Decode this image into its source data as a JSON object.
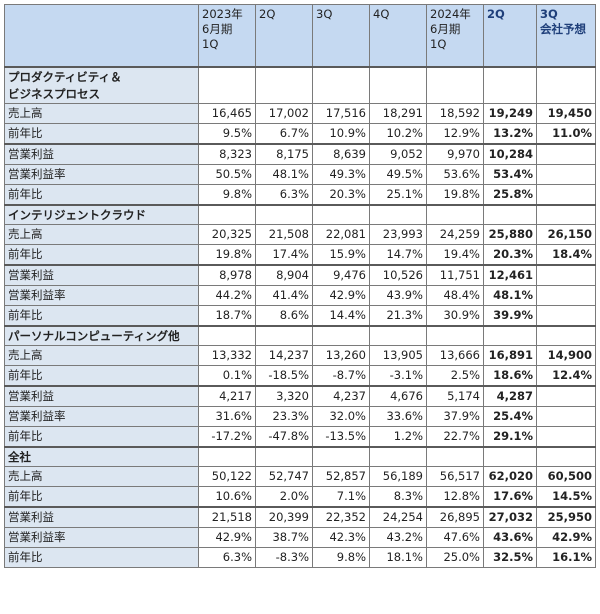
{
  "headers": [
    [
      "",
      "",
      ""
    ],
    [
      "2023年",
      "6月期",
      "1Q"
    ],
    [
      "2Q",
      "",
      ""
    ],
    [
      "3Q",
      "",
      ""
    ],
    [
      "4Q",
      "",
      ""
    ],
    [
      "2024年",
      "6月期",
      "1Q"
    ],
    [
      "2Q",
      "",
      ""
    ],
    [
      "3Q",
      "会社予想",
      ""
    ]
  ],
  "sections": [
    {
      "title": [
        "プロダクティビティ＆",
        "ビジネスプロセス"
      ],
      "rows": [
        {
          "label": "売上高",
          "values": [
            "16,465",
            "17,002",
            "17,516",
            "18,291",
            "18,592",
            "19,249",
            "19,450"
          ]
        },
        {
          "label": "前年比",
          "values": [
            "9.5%",
            "6.7%",
            "10.9%",
            "10.2%",
            "12.9%",
            "13.2%",
            "11.0%"
          ]
        },
        {
          "label": "営業利益",
          "values": [
            "8,323",
            "8,175",
            "8,639",
            "9,052",
            "9,970",
            "10,284",
            ""
          ]
        },
        {
          "label": "営業利益率",
          "values": [
            "50.5%",
            "48.1%",
            "49.3%",
            "49.5%",
            "53.6%",
            "53.4%",
            ""
          ]
        },
        {
          "label": "前年比",
          "values": [
            "9.8%",
            "6.3%",
            "20.3%",
            "25.1%",
            "19.8%",
            "25.8%",
            ""
          ]
        }
      ]
    },
    {
      "title": [
        "インテリジェントクラウド"
      ],
      "rows": [
        {
          "label": "売上高",
          "values": [
            "20,325",
            "21,508",
            "22,081",
            "23,993",
            "24,259",
            "25,880",
            "26,150"
          ]
        },
        {
          "label": "前年比",
          "values": [
            "19.8%",
            "17.4%",
            "15.9%",
            "14.7%",
            "19.4%",
            "20.3%",
            "18.4%"
          ]
        },
        {
          "label": "営業利益",
          "values": [
            "8,978",
            "8,904",
            "9,476",
            "10,526",
            "11,751",
            "12,461",
            ""
          ]
        },
        {
          "label": "営業利益率",
          "values": [
            "44.2%",
            "41.4%",
            "42.9%",
            "43.9%",
            "48.4%",
            "48.1%",
            ""
          ]
        },
        {
          "label": "前年比",
          "values": [
            "18.7%",
            "8.6%",
            "14.4%",
            "21.3%",
            "30.9%",
            "39.9%",
            ""
          ]
        }
      ]
    },
    {
      "title": [
        "パーソナルコンピューティング他"
      ],
      "rows": [
        {
          "label": "売上高",
          "values": [
            "13,332",
            "14,237",
            "13,260",
            "13,905",
            "13,666",
            "16,891",
            "14,900"
          ]
        },
        {
          "label": "前年比",
          "values": [
            "0.1%",
            "-18.5%",
            "-8.7%",
            "-3.1%",
            "2.5%",
            "18.6%",
            "12.4%"
          ]
        },
        {
          "label": "営業利益",
          "values": [
            "4,217",
            "3,320",
            "4,237",
            "4,676",
            "5,174",
            "4,287",
            ""
          ]
        },
        {
          "label": "営業利益率",
          "values": [
            "31.6%",
            "23.3%",
            "32.0%",
            "33.6%",
            "37.9%",
            "25.4%",
            ""
          ]
        },
        {
          "label": "前年比",
          "values": [
            "-17.2%",
            "-47.8%",
            "-13.5%",
            "1.2%",
            "22.7%",
            "29.1%",
            ""
          ]
        }
      ]
    },
    {
      "title": [
        "全社"
      ],
      "rows": [
        {
          "label": "売上高",
          "values": [
            "50,122",
            "52,747",
            "52,857",
            "56,189",
            "56,517",
            "62,020",
            "60,500"
          ]
        },
        {
          "label": "前年比",
          "values": [
            "10.6%",
            "2.0%",
            "7.1%",
            "8.3%",
            "12.8%",
            "17.6%",
            "14.5%"
          ]
        },
        {
          "label": "営業利益",
          "values": [
            "21,518",
            "20,399",
            "22,352",
            "24,254",
            "26,895",
            "27,032",
            "25,950"
          ]
        },
        {
          "label": "営業利益率",
          "values": [
            "42.9%",
            "38.7%",
            "42.3%",
            "43.2%",
            "47.6%",
            "43.6%",
            "42.9%"
          ]
        },
        {
          "label": "前年比",
          "values": [
            "6.3%",
            "-8.3%",
            "9.8%",
            "18.1%",
            "25.0%",
            "32.5%",
            "16.1%"
          ]
        }
      ]
    }
  ]
}
